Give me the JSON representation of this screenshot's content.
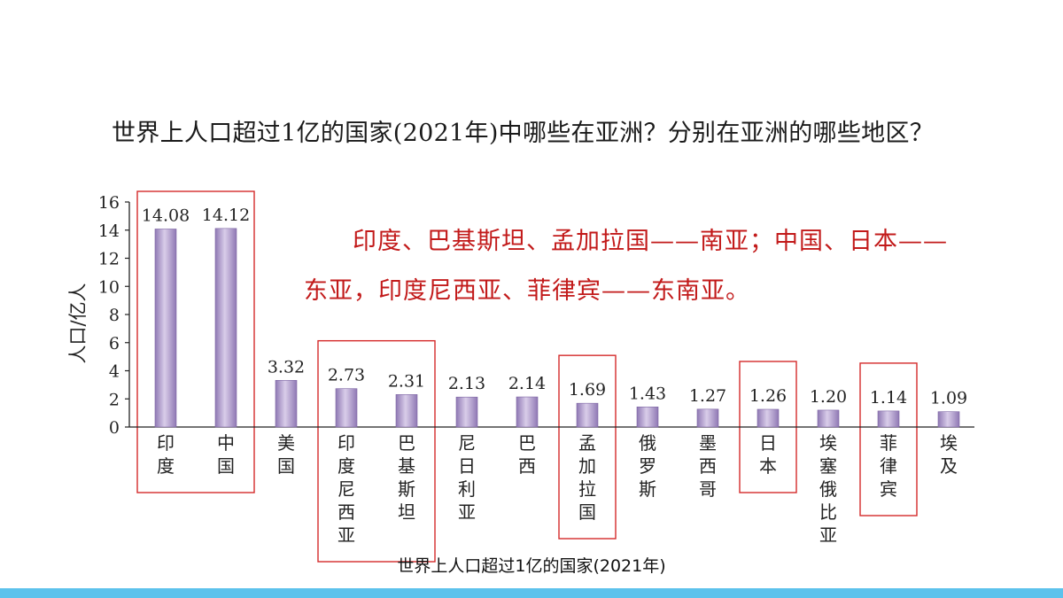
{
  "question": "世界上人口超过1亿的国家(2021年)中哪些在亚洲？分别在亚洲的哪些地区？",
  "answer": {
    "line1": "印度、巴基斯坦、孟加拉国——南亚；中国、日本——",
    "line2": "东亚，印度尼西亚、菲律宾——东南亚。"
  },
  "colors": {
    "bar": "#a48ec4",
    "highlight_box": "#d42a2a",
    "answer_text": "#c21a1a",
    "bottom_bar": "#5cc2ec"
  },
  "chart_data": {
    "type": "bar",
    "caption": "世界上人口超过1亿的国家(2021年)",
    "ylabel": "人口/亿人",
    "ylim": [
      0,
      16
    ],
    "yticks": [
      0,
      2,
      4,
      6,
      8,
      10,
      12,
      14,
      16
    ],
    "categories": [
      "印度",
      "中国",
      "美国",
      "印度尼西亚",
      "巴基斯坦",
      "尼日利亚",
      "巴西",
      "孟加拉国",
      "俄罗斯",
      "墨西哥",
      "日本",
      "埃塞俄比亚",
      "菲律宾",
      "埃及"
    ],
    "values": [
      14.08,
      14.12,
      3.32,
      2.73,
      2.31,
      2.13,
      2.14,
      1.69,
      1.43,
      1.27,
      1.26,
      1.2,
      1.14,
      1.09
    ],
    "value_labels": [
      "14.08",
      "14.12",
      "3.32",
      "2.73",
      "2.31",
      "2.13",
      "2.14",
      "1.69",
      "1.43",
      "1.27",
      "1.26",
      "1.20",
      "1.14",
      "1.09"
    ],
    "highlight_groups": [
      [
        0,
        1
      ],
      [
        3,
        4
      ],
      [
        7
      ],
      [
        10
      ],
      [
        12
      ]
    ]
  }
}
